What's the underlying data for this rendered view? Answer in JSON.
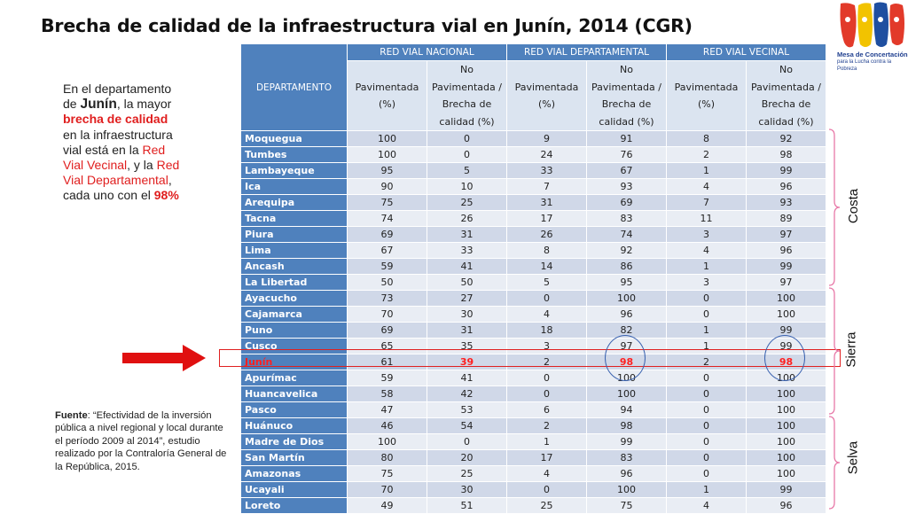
{
  "title": "Brecha de calidad de la infraestructura vial en Junín, 2014 (CGR)",
  "logo": {
    "line1": "Mesa de Concertación",
    "line2": "para la Lucha contra la Pobreza"
  },
  "sidebar": {
    "t1": "En el departamento de ",
    "t2": "Junín",
    "t3": ", la mayor ",
    "t4": "brecha de calidad",
    "t5": " en la infraestructura vial está en la ",
    "t6": "Red Vial Vecinal",
    "t7": ", y la ",
    "t8": "Red Vial Departamental",
    "t9": ", cada uno con el ",
    "t10": "98%"
  },
  "source": {
    "label": "Fuente",
    "text": ": “Efectividad de la inversión pública a nivel regional y local durante el período 2009 al 2014”, estudio realizado por la Contraloría General de la República, 2015."
  },
  "table": {
    "dept_header": "DEPARTAMENTO",
    "groups": [
      "RED VIAL NACIONAL",
      "RED VIAL DEPARTAMENTAL",
      "RED VIAL VECINAL"
    ],
    "sub": [
      "Pavimentada (%)",
      "No Pavimentada / Brecha de calidad (%)",
      "Pavimentada (%)",
      "No Pavimentada / Brecha de calidad (%)",
      "Pavimentada (%)",
      "No Pavimentada / Brecha de calidad (%)"
    ],
    "highlight": "Junín",
    "rows": [
      [
        "Moquegua",
        "100",
        "0",
        "9",
        "91",
        "8",
        "92"
      ],
      [
        "Tumbes",
        "100",
        "0",
        "24",
        "76",
        "2",
        "98"
      ],
      [
        "Lambayeque",
        "95",
        "5",
        "33",
        "67",
        "1",
        "99"
      ],
      [
        "Ica",
        "90",
        "10",
        "7",
        "93",
        "4",
        "96"
      ],
      [
        "Arequipa",
        "75",
        "25",
        "31",
        "69",
        "7",
        "93"
      ],
      [
        "Tacna",
        "74",
        "26",
        "17",
        "83",
        "11",
        "89"
      ],
      [
        "Piura",
        "69",
        "31",
        "26",
        "74",
        "3",
        "97"
      ],
      [
        "Lima",
        "67",
        "33",
        "8",
        "92",
        "4",
        "96"
      ],
      [
        "Ancash",
        "59",
        "41",
        "14",
        "86",
        "1",
        "99"
      ],
      [
        "La Libertad",
        "50",
        "50",
        "5",
        "95",
        "3",
        "97"
      ],
      [
        "Ayacucho",
        "73",
        "27",
        "0",
        "100",
        "0",
        "100"
      ],
      [
        "Cajamarca",
        "70",
        "30",
        "4",
        "96",
        "0",
        "100"
      ],
      [
        "Puno",
        "69",
        "31",
        "18",
        "82",
        "1",
        "99"
      ],
      [
        "Cusco",
        "65",
        "35",
        "3",
        "97",
        "1",
        "99"
      ],
      [
        "Junín",
        "61",
        "39",
        "2",
        "98",
        "2",
        "98"
      ],
      [
        "Apurímac",
        "59",
        "41",
        "0",
        "100",
        "0",
        "100"
      ],
      [
        "Huancavelica",
        "58",
        "42",
        "0",
        "100",
        "0",
        "100"
      ],
      [
        "Pasco",
        "47",
        "53",
        "6",
        "94",
        "0",
        "100"
      ],
      [
        "Huánuco",
        "46",
        "54",
        "2",
        "98",
        "0",
        "100"
      ],
      [
        "Madre de Dios",
        "100",
        "0",
        "1",
        "99",
        "0",
        "100"
      ],
      [
        "San Martín",
        "80",
        "20",
        "17",
        "83",
        "0",
        "100"
      ],
      [
        "Amazonas",
        "75",
        "25",
        "4",
        "96",
        "0",
        "100"
      ],
      [
        "Ucayali",
        "70",
        "30",
        "0",
        "100",
        "1",
        "99"
      ],
      [
        "Loreto",
        "49",
        "51",
        "25",
        "75",
        "4",
        "96"
      ]
    ]
  },
  "regions": {
    "costa": "Costa",
    "sierra": "Sierra",
    "selva": "Selva"
  },
  "colors": {
    "header": "#4f81bd",
    "row_odd": "#d0d8e8",
    "row_even": "#e9edf4",
    "highlight": "#ff2020",
    "circle": "#3b63b0"
  }
}
